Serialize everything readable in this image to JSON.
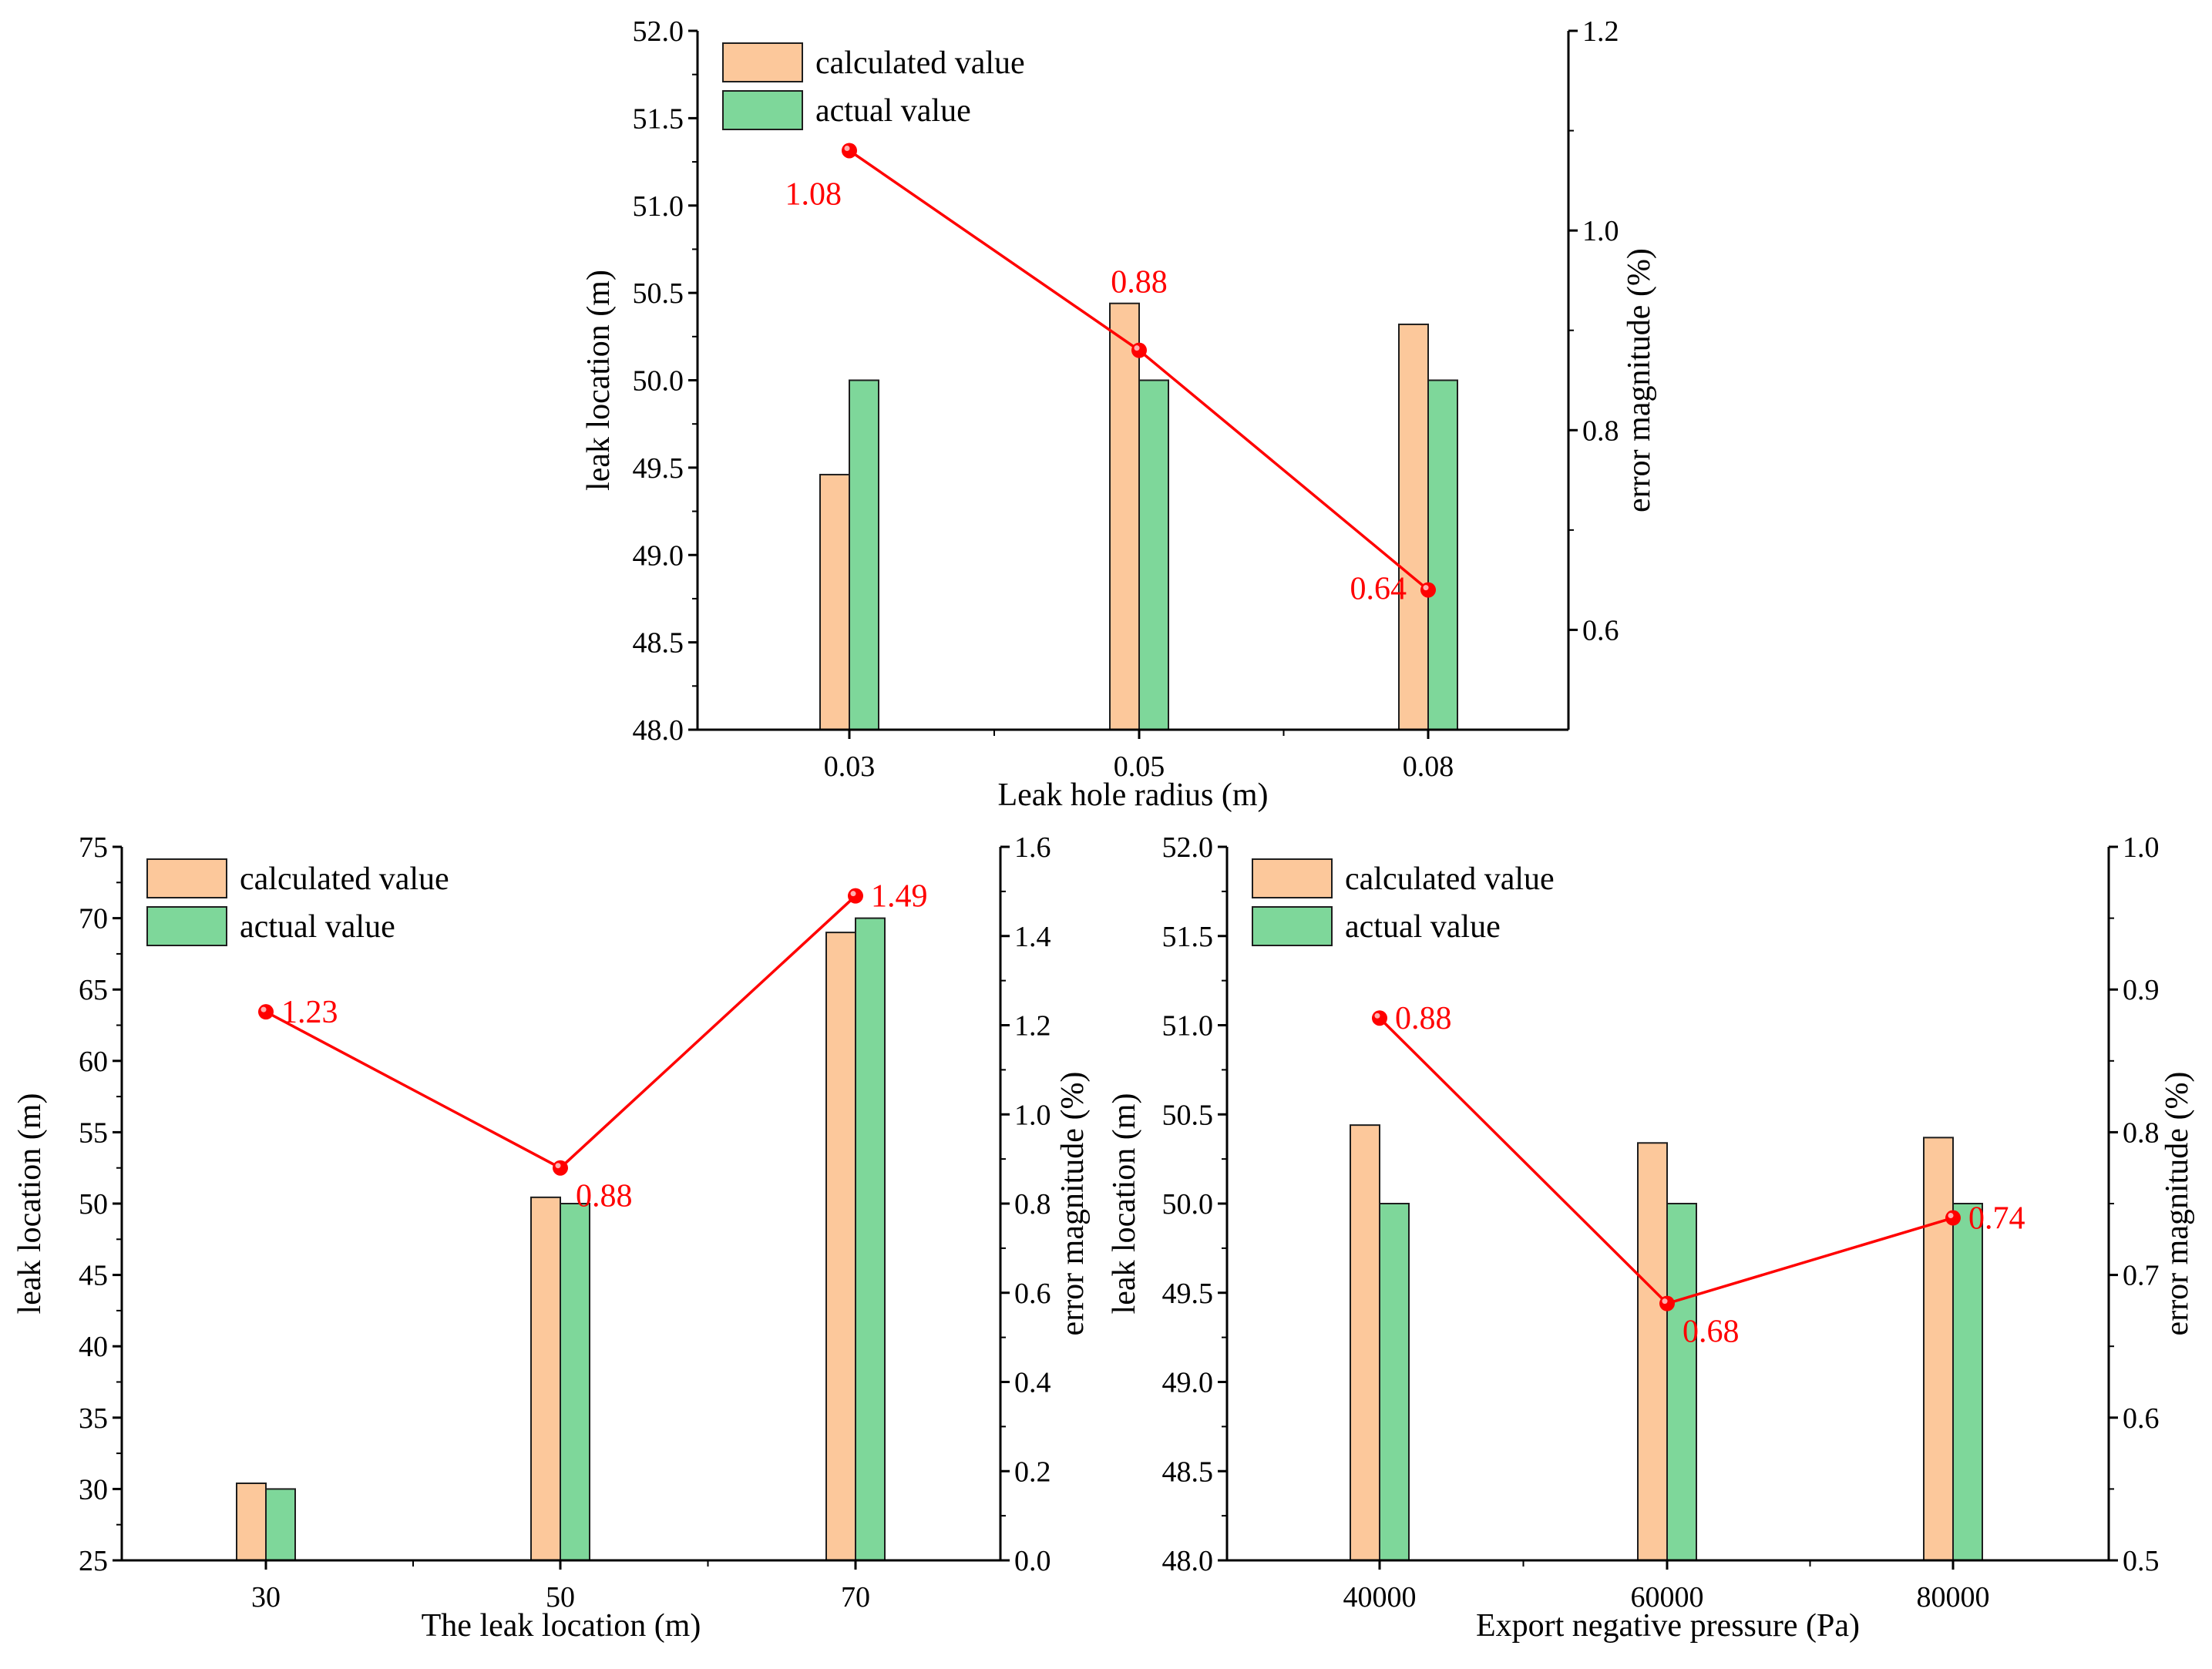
{
  "colors": {
    "calculated_fill": "#fcc89b",
    "actual_fill": "#7ed79a",
    "bar_stroke": "#1e1e1e",
    "error_line": "#ff0000",
    "axis": "#000000"
  },
  "chart_data": [
    {
      "type": "bar",
      "id": "top",
      "categories": [
        "0.03",
        "0.05",
        "0.08"
      ],
      "series": [
        {
          "name": "calculated value",
          "values": [
            49.46,
            50.44,
            50.32
          ]
        },
        {
          "name": "actual value",
          "values": [
            50.0,
            50.0,
            50.0
          ]
        }
      ],
      "error_series": {
        "name": "error magnitude",
        "values": [
          1.08,
          0.88,
          0.64
        ],
        "labels": [
          "1.08",
          "0.88",
          "0.64"
        ],
        "label_pos": [
          "below-left",
          "above",
          "left"
        ]
      },
      "xlabel": "Leak hole radius (m)",
      "ylabel": "leak location (m)",
      "y2label": "error magnitude (%)",
      "ylim": [
        48.0,
        52.0
      ],
      "yticks": [
        "48.0",
        "48.5",
        "49.0",
        "49.5",
        "50.0",
        "50.5",
        "51.0",
        "51.5",
        "52.0"
      ],
      "y2lim": [
        0.5,
        1.2
      ],
      "y2ticks": [
        "0.6",
        "0.8",
        "1.0",
        "1.2"
      ],
      "y2tick_values": [
        0.6,
        0.8,
        1.0,
        1.2
      ],
      "legend": [
        "calculated value",
        "actual value"
      ],
      "legend_position": "top-left"
    },
    {
      "type": "bar",
      "id": "bottom-left",
      "categories": [
        "30",
        "50",
        "70"
      ],
      "series": [
        {
          "name": "calculated value",
          "values": [
            30.4,
            50.44,
            69.0
          ]
        },
        {
          "name": "actual value",
          "values": [
            30.0,
            50.0,
            70.0
          ]
        }
      ],
      "error_series": {
        "name": "error magnitude",
        "values": [
          1.23,
          0.88,
          1.49
        ],
        "labels": [
          "1.23",
          "0.88",
          "1.49"
        ],
        "label_pos": [
          "right",
          "below-right",
          "right"
        ]
      },
      "xlabel": "The leak location (m)",
      "ylabel": "leak location (m)",
      "y2label": "error magnitude (%)",
      "ylim": [
        25,
        75
      ],
      "yticks": [
        "25",
        "30",
        "35",
        "40",
        "45",
        "50",
        "55",
        "60",
        "65",
        "70",
        "75"
      ],
      "y2lim": [
        0.0,
        1.6
      ],
      "y2ticks": [
        "0.0",
        "0.2",
        "0.4",
        "0.6",
        "0.8",
        "1.0",
        "1.2",
        "1.4",
        "1.6"
      ],
      "y2tick_values": [
        0.0,
        0.2,
        0.4,
        0.6,
        0.8,
        1.0,
        1.2,
        1.4,
        1.6
      ],
      "legend": [
        "calculated value",
        "actual value"
      ],
      "legend_position": "top-left"
    },
    {
      "type": "bar",
      "id": "bottom-right",
      "categories": [
        "40000",
        "60000",
        "80000"
      ],
      "series": [
        {
          "name": "calculated value",
          "values": [
            50.44,
            50.34,
            50.37
          ]
        },
        {
          "name": "actual value",
          "values": [
            50.0,
            50.0,
            50.0
          ]
        }
      ],
      "error_series": {
        "name": "error magnitude",
        "values": [
          0.88,
          0.68,
          0.74
        ],
        "labels": [
          "0.88",
          "0.68",
          "0.74"
        ],
        "label_pos": [
          "right",
          "below-right",
          "right"
        ]
      },
      "xlabel": "Export negative pressure (Pa)",
      "ylabel": "leak location (m)",
      "y2label": "error magnitude (%)",
      "ylim": [
        48.0,
        52.0
      ],
      "yticks": [
        "48.0",
        "48.5",
        "49.0",
        "49.5",
        "50.0",
        "50.5",
        "51.0",
        "51.5",
        "52.0"
      ],
      "y2lim": [
        0.5,
        1.0
      ],
      "y2ticks": [
        "0.5",
        "0.6",
        "0.7",
        "0.8",
        "0.9",
        "1.0"
      ],
      "y2tick_values": [
        0.5,
        0.6,
        0.7,
        0.8,
        0.9,
        1.0
      ],
      "legend": [
        "calculated value",
        "actual value"
      ],
      "legend_position": "top-left"
    }
  ]
}
